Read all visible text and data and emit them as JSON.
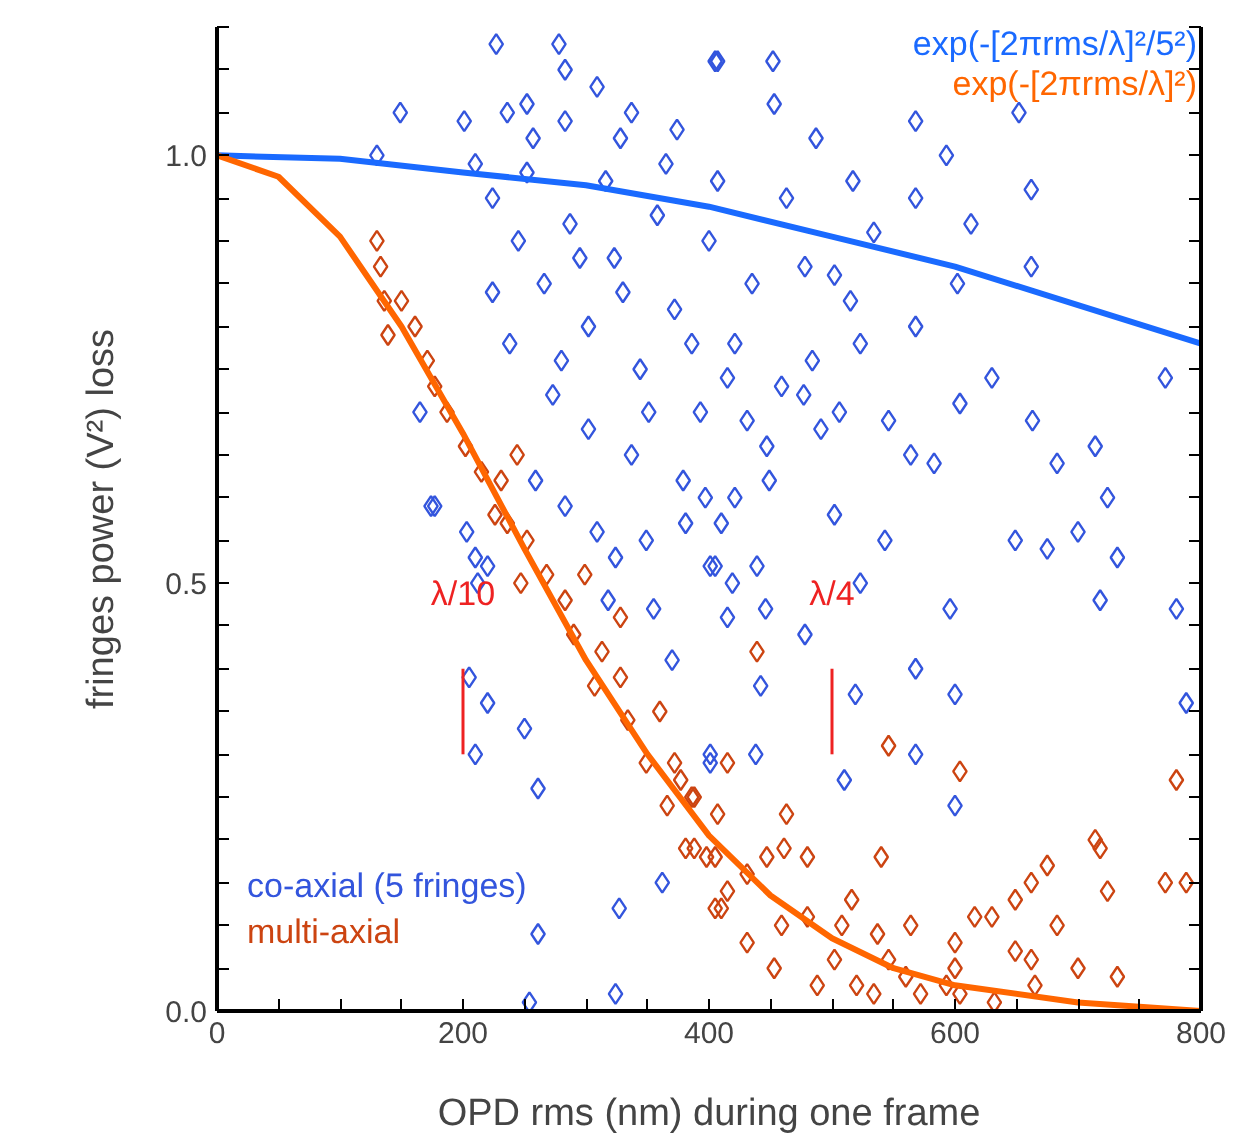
{
  "chart_data": {
    "type": "scatter",
    "xlabel": "OPD rms (nm) during one frame",
    "ylabel": "fringes power (V²) loss",
    "xlim": [
      0,
      800
    ],
    "ylim": [
      0,
      1.15
    ],
    "xticks": [
      0,
      {
        "value": 50,
        "label": null
      },
      {
        "value": 100,
        "label": null
      },
      {
        "value": 150,
        "label": null
      },
      200,
      {
        "value": 250,
        "label": null
      },
      {
        "value": 300,
        "label": null
      },
      {
        "value": 350,
        "label": null
      },
      400,
      {
        "value": 450,
        "label": null
      },
      {
        "value": 500,
        "label": null
      },
      {
        "value": 550,
        "label": null
      },
      600,
      {
        "value": 650,
        "label": null
      },
      {
        "value": 700,
        "label": null
      },
      {
        "value": 750,
        "label": null
      },
      800
    ],
    "yticks": [
      {
        "value": 0,
        "label": "0.0"
      },
      {
        "value": 0.05,
        "label": null
      },
      {
        "value": 0.1,
        "label": null
      },
      {
        "value": 0.15,
        "label": null
      },
      {
        "value": 0.2,
        "label": null
      },
      {
        "value": 0.25,
        "label": null
      },
      {
        "value": 0.3,
        "label": null
      },
      {
        "value": 0.35,
        "label": null
      },
      {
        "value": 0.4,
        "label": null
      },
      {
        "value": 0.45,
        "label": null
      },
      0.5,
      {
        "value": 0.55,
        "label": null
      },
      {
        "value": 0.6,
        "label": null
      },
      {
        "value": 0.65,
        "label": null
      },
      {
        "value": 0.7,
        "label": null
      },
      {
        "value": 0.75,
        "label": null
      },
      {
        "value": 0.8,
        "label": null
      },
      {
        "value": 0.85,
        "label": null
      },
      {
        "value": 0.9,
        "label": null
      },
      {
        "value": 0.95,
        "label": null
      },
      {
        "value": 1,
        "label": "1.0"
      },
      {
        "value": 1.05,
        "label": null
      },
      {
        "value": 1.1,
        "label": null
      },
      {
        "value": 1.15,
        "label": null
      }
    ],
    "grid": false,
    "series": [
      {
        "name": "co-axial (5 fringes)",
        "marker": "diamond",
        "color": "#3355dd",
        "x": [
          227,
          278,
          283,
          149,
          236,
          252,
          309,
          337,
          405,
          201,
          283,
          374,
          328,
          257,
          407,
          452,
          453,
          487,
          568,
          593,
          652,
          662,
          568,
          613,
          517,
          534,
          662,
          602,
          568,
          523,
          630,
          771,
          604,
          663,
          683,
          714,
          564,
          583,
          724,
          546,
          506,
          478,
          502,
          515,
          484,
          459,
          447,
          431,
          415,
          397,
          410,
          502,
          543,
          649,
          675,
          700,
          732,
          405,
          439,
          419,
          523,
          446,
          596,
          718,
          780,
          415,
          478,
          568,
          442,
          519,
          600,
          788,
          438,
          401,
          568,
          510,
          600,
          177,
          203,
          283,
          309,
          349,
          381,
          210,
          220,
          324,
          401,
          212,
          318,
          355,
          370,
          205,
          220,
          250,
          210,
          261,
          401,
          362,
          327,
          261,
          254,
          324,
          224,
          245,
          266,
          287,
          302,
          323,
          344,
          358,
          372,
          393,
          400,
          421,
          435,
          449,
          463,
          477,
          302,
          238,
          273,
          337,
          365,
          407,
          252,
          316,
          210,
          379,
          491,
          280,
          330,
          386,
          224,
          259,
          295,
          421,
          351,
          165,
          174,
          130
        ],
        "values": [
          1.13,
          1.13,
          1.1,
          1.05,
          1.05,
          1.06,
          1.08,
          1.05,
          1.11,
          1.04,
          1.04,
          1.03,
          1.02,
          1.02,
          1.11,
          1.11,
          1.06,
          1.02,
          1.04,
          1.0,
          1.05,
          0.96,
          0.95,
          0.92,
          0.97,
          0.91,
          0.87,
          0.85,
          0.8,
          0.78,
          0.74,
          0.74,
          0.71,
          0.69,
          0.64,
          0.66,
          0.65,
          0.64,
          0.6,
          0.69,
          0.7,
          0.87,
          0.86,
          0.83,
          0.76,
          0.73,
          0.66,
          0.69,
          0.74,
          0.6,
          0.57,
          0.58,
          0.55,
          0.55,
          0.54,
          0.56,
          0.53,
          0.52,
          0.52,
          0.5,
          0.5,
          0.47,
          0.47,
          0.48,
          0.47,
          0.46,
          0.44,
          0.4,
          0.38,
          0.37,
          0.37,
          0.36,
          0.3,
          0.3,
          0.3,
          0.27,
          0.24,
          0.59,
          0.56,
          0.59,
          0.56,
          0.55,
          0.57,
          0.53,
          0.52,
          0.53,
          0.52,
          0.5,
          0.48,
          0.47,
          0.41,
          0.39,
          0.36,
          0.33,
          0.3,
          0.26,
          0.29,
          0.15,
          0.12,
          0.09,
          0.01,
          0.02,
          0.95,
          0.9,
          0.85,
          0.92,
          0.8,
          0.88,
          0.75,
          0.93,
          0.82,
          0.7,
          0.9,
          0.78,
          0.85,
          0.62,
          0.95,
          0.72,
          0.68,
          0.78,
          0.72,
          0.65,
          0.99,
          0.97,
          0.98,
          0.97,
          0.99,
          0.62,
          0.68,
          0.76,
          0.84,
          0.78,
          0.84,
          0.62,
          0.88,
          0.6,
          0.7,
          0.7,
          0.59,
          1.0
        ]
      },
      {
        "name": "multi-axial",
        "marker": "diamond",
        "color": "#cc4411",
        "x": [
          130,
          133,
          136,
          150,
          139,
          161,
          171,
          177,
          187,
          202,
          215,
          231,
          244,
          226,
          236,
          252,
          268,
          247,
          283,
          299,
          290,
          313,
          307,
          328,
          334,
          360,
          349,
          372,
          366,
          388,
          388,
          405,
          405,
          328,
          377,
          386,
          407,
          381,
          398,
          415,
          431,
          447,
          463,
          461,
          480,
          410,
          431,
          459,
          453,
          480,
          488,
          508,
          516,
          502,
          520,
          537,
          546,
          534,
          564,
          560,
          572,
          600,
          600,
          593,
          540,
          439,
          415,
          546,
          604,
          616,
          630,
          649,
          662,
          675,
          649,
          662,
          665,
          683,
          700,
          714,
          718,
          724,
          732,
          771,
          788,
          780,
          604,
          632
        ],
        "values": [
          0.9,
          0.87,
          0.83,
          0.83,
          0.79,
          0.8,
          0.76,
          0.73,
          0.7,
          0.66,
          0.63,
          0.62,
          0.65,
          0.58,
          0.57,
          0.55,
          0.51,
          0.5,
          0.48,
          0.51,
          0.44,
          0.42,
          0.38,
          0.39,
          0.34,
          0.35,
          0.29,
          0.29,
          0.24,
          0.25,
          0.19,
          0.18,
          0.12,
          0.46,
          0.27,
          0.25,
          0.23,
          0.19,
          0.18,
          0.14,
          0.16,
          0.18,
          0.23,
          0.19,
          0.18,
          0.12,
          0.08,
          0.1,
          0.05,
          0.11,
          0.03,
          0.1,
          0.13,
          0.06,
          0.03,
          0.09,
          0.06,
          0.02,
          0.1,
          0.04,
          0.02,
          0.08,
          0.05,
          0.03,
          0.18,
          0.42,
          0.29,
          0.31,
          0.28,
          0.11,
          0.11,
          0.13,
          0.15,
          0.17,
          0.07,
          0.06,
          0.03,
          0.1,
          0.05,
          0.2,
          0.19,
          0.14,
          0.04,
          0.15,
          0.15,
          0.27,
          0.02,
          0.01
        ]
      },
      {
        "name": "exp(-[2πrms/λ]²/5²)",
        "type": "line",
        "color": "#1a6aff",
        "x": [
          0,
          100,
          200,
          300,
          400,
          500,
          600,
          700,
          800
        ],
        "values": [
          1.0,
          0.996,
          0.98,
          0.965,
          0.94,
          0.905,
          0.87,
          0.825,
          0.78
        ]
      },
      {
        "name": "exp(-[2πrms/λ]²)",
        "type": "line",
        "color": "#ff6600",
        "x": [
          0,
          50,
          100,
          150,
          200,
          250,
          300,
          350,
          400,
          450,
          500,
          550,
          600,
          700,
          800
        ],
        "values": [
          1.0,
          0.975,
          0.905,
          0.8,
          0.675,
          0.54,
          0.41,
          0.3,
          0.205,
          0.135,
          0.085,
          0.05,
          0.03,
          0.01,
          0.0
        ]
      },
      {
        "type": "line",
        "color": "#ee2222",
        "x": [
          200,
          200
        ],
        "values": [
          0.3,
          0.4
        ]
      },
      {
        "type": "line",
        "color": "#ee2222",
        "x": [
          500,
          500
        ],
        "values": [
          0.3,
          0.4
        ]
      }
    ],
    "annotations": [
      "λ/10",
      "λ/4"
    ]
  }
}
